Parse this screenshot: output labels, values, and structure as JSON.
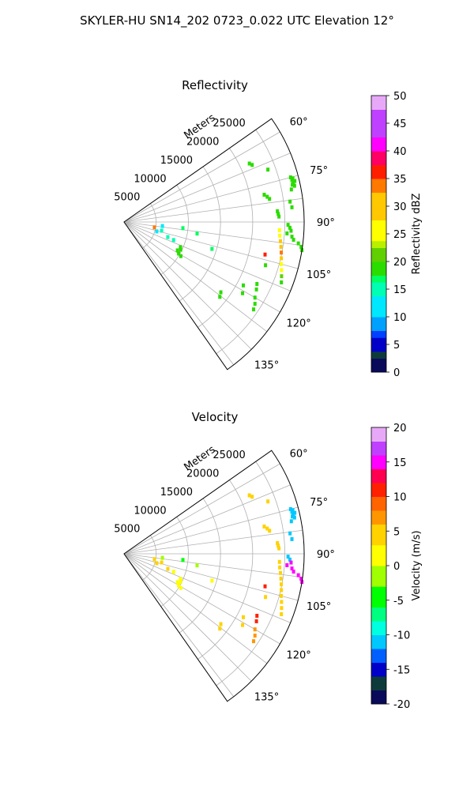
{
  "figure_title": "SKYLER-HU  SN14_202  0723_0.022 UTC Elevation 12°",
  "chart_data": [
    {
      "type": "scatter",
      "title": "Reflectivity",
      "range_axis_label": "Meters",
      "range_ticks": [
        5000,
        10000,
        15000,
        20000,
        25000
      ],
      "range_tick_labels": [
        "5000",
        "10000",
        "15000",
        "20000",
        "25000"
      ],
      "range_max": 28000,
      "azimuth_range_deg": [
        55,
        145
      ],
      "azimuth_ticks": [
        60,
        75,
        90,
        105,
        120,
        135
      ],
      "azimuth_tick_labels": [
        "60°",
        "75°",
        "90°",
        "105°",
        "120°",
        "135°"
      ],
      "grid": true,
      "colorbar": {
        "label": "Reflectivity dBZ",
        "range": [
          0,
          50
        ],
        "ticks": [
          0,
          5,
          10,
          15,
          20,
          25,
          30,
          35,
          40,
          45,
          50
        ],
        "tick_labels": [
          "0",
          "5",
          "10",
          "15",
          "20",
          "25",
          "30",
          "35",
          "40",
          "45",
          "50"
        ]
      },
      "echoes": [
        {
          "az": 65,
          "r": 21500,
          "v": 18
        },
        {
          "az": 66,
          "r": 21800,
          "v": 18
        },
        {
          "az": 70,
          "r": 23800,
          "v": 18
        },
        {
          "az": 75,
          "r": 26800,
          "v": 18
        },
        {
          "az": 75.5,
          "r": 27100,
          "v": 18
        },
        {
          "az": 76,
          "r": 26900,
          "v": 19
        },
        {
          "az": 76.5,
          "r": 27300,
          "v": 18
        },
        {
          "az": 77,
          "r": 27000,
          "v": 19
        },
        {
          "az": 77.5,
          "r": 26800,
          "v": 18
        },
        {
          "az": 78,
          "r": 27100,
          "v": 19
        },
        {
          "az": 79,
          "r": 26500,
          "v": 18
        },
        {
          "az": 79,
          "r": 22200,
          "v": 18
        },
        {
          "az": 80,
          "r": 22600,
          "v": 18
        },
        {
          "az": 81,
          "r": 22900,
          "v": 18
        },
        {
          "az": 83,
          "r": 26000,
          "v": 18
        },
        {
          "az": 85,
          "r": 26200,
          "v": 18
        },
        {
          "az": 86,
          "r": 23900,
          "v": 18
        },
        {
          "az": 87,
          "r": 24000,
          "v": 18
        },
        {
          "az": 88,
          "r": 24100,
          "v": 18
        },
        {
          "az": 91,
          "r": 25500,
          "v": 19
        },
        {
          "az": 92,
          "r": 25800,
          "v": 18
        },
        {
          "az": 93,
          "r": 26000,
          "v": 19
        },
        {
          "az": 94,
          "r": 25400,
          "v": 18
        },
        {
          "az": 95,
          "r": 26200,
          "v": 19
        },
        {
          "az": 96,
          "r": 26500,
          "v": 18
        },
        {
          "az": 97,
          "r": 27300,
          "v": 18
        },
        {
          "az": 98,
          "r": 27800,
          "v": 18
        },
        {
          "az": 99,
          "r": 28000,
          "v": 19
        },
        {
          "az": 93,
          "r": 24200,
          "v": 24
        },
        {
          "az": 95,
          "r": 24300,
          "v": 26
        },
        {
          "az": 97,
          "r": 24500,
          "v": 28
        },
        {
          "az": 99,
          "r": 24700,
          "v": 30
        },
        {
          "az": 101,
          "r": 24900,
          "v": 33
        },
        {
          "az": 103,
          "r": 25100,
          "v": 28
        },
        {
          "az": 105,
          "r": 25300,
          "v": 26
        },
        {
          "az": 107,
          "r": 25600,
          "v": 24
        },
        {
          "az": 109,
          "r": 25900,
          "v": 20
        },
        {
          "az": 111,
          "r": 26200,
          "v": 18
        },
        {
          "az": 103,
          "r": 22500,
          "v": 36
        },
        {
          "az": 107,
          "r": 23000,
          "v": 18
        },
        {
          "az": 115,
          "r": 22800,
          "v": 18
        },
        {
          "az": 117,
          "r": 23100,
          "v": 18
        },
        {
          "az": 120,
          "r": 23500,
          "v": 18
        },
        {
          "az": 122,
          "r": 24000,
          "v": 18
        },
        {
          "az": 124,
          "r": 24300,
          "v": 18
        },
        {
          "az": 118,
          "r": 21000,
          "v": 18
        },
        {
          "az": 121,
          "r": 21500,
          "v": 18
        },
        {
          "az": 126,
          "r": 18600,
          "v": 18
        },
        {
          "az": 128,
          "r": 18900,
          "v": 18
        },
        {
          "az": 114,
          "r": 9600,
          "v": 18
        },
        {
          "az": 116,
          "r": 9800,
          "v": 18
        },
        {
          "az": 118,
          "r": 9400,
          "v": 18
        },
        {
          "az": 120,
          "r": 9800,
          "v": 18
        },
        {
          "az": 121,
          "r": 10300,
          "v": 18
        },
        {
          "az": 103,
          "r": 6000,
          "v": 14
        },
        {
          "az": 106,
          "r": 5300,
          "v": 12
        },
        {
          "az": 109,
          "r": 7200,
          "v": 14
        },
        {
          "az": 110,
          "r": 8200,
          "v": 14
        },
        {
          "az": 96,
          "r": 6000,
          "v": 12
        },
        {
          "az": 100,
          "r": 4800,
          "v": 32
        },
        {
          "az": 96,
          "r": 9200,
          "v": 16
        },
        {
          "az": 99,
          "r": 11500,
          "v": 16
        },
        {
          "az": 107,
          "r": 14300,
          "v": 16
        }
      ]
    },
    {
      "type": "scatter",
      "title": "Velocity",
      "range_axis_label": "Meters",
      "range_ticks": [
        5000,
        10000,
        15000,
        20000,
        25000
      ],
      "range_tick_labels": [
        "5000",
        "10000",
        "15000",
        "20000",
        "25000"
      ],
      "range_max": 28000,
      "azimuth_range_deg": [
        55,
        145
      ],
      "azimuth_ticks": [
        60,
        75,
        90,
        105,
        120,
        135
      ],
      "azimuth_tick_labels": [
        "60°",
        "75°",
        "90°",
        "105°",
        "120°",
        "135°"
      ],
      "grid": true,
      "colorbar": {
        "label": "Velocity (m/s)",
        "range": [
          -20,
          20
        ],
        "ticks": [
          -20,
          -15,
          -10,
          -5,
          0,
          5,
          10,
          15,
          20
        ],
        "tick_labels": [
          "-20",
          "-15",
          "-10",
          "-5",
          "0",
          "5",
          "10",
          "15",
          "20"
        ]
      },
      "echoes": [
        {
          "az": 65,
          "r": 21500,
          "v": 5
        },
        {
          "az": 66,
          "r": 21800,
          "v": 5
        },
        {
          "az": 70,
          "r": 23800,
          "v": 5
        },
        {
          "az": 75,
          "r": 26800,
          "v": -11
        },
        {
          "az": 75.5,
          "r": 27100,
          "v": -11
        },
        {
          "az": 76,
          "r": 26900,
          "v": -12
        },
        {
          "az": 76.5,
          "r": 27300,
          "v": -11
        },
        {
          "az": 77,
          "r": 27000,
          "v": -12
        },
        {
          "az": 77.5,
          "r": 26800,
          "v": -11
        },
        {
          "az": 78,
          "r": 27100,
          "v": -12
        },
        {
          "az": 79,
          "r": 26500,
          "v": -11
        },
        {
          "az": 79,
          "r": 22200,
          "v": 5
        },
        {
          "az": 80,
          "r": 22600,
          "v": 5
        },
        {
          "az": 81,
          "r": 22900,
          "v": 5
        },
        {
          "az": 83,
          "r": 26000,
          "v": -11
        },
        {
          "az": 85,
          "r": 26200,
          "v": -11
        },
        {
          "az": 86,
          "r": 23900,
          "v": 5
        },
        {
          "az": 87,
          "r": 24000,
          "v": 5
        },
        {
          "az": 88,
          "r": 24100,
          "v": 5
        },
        {
          "az": 91,
          "r": 25500,
          "v": -11
        },
        {
          "az": 92,
          "r": 25800,
          "v": -11
        },
        {
          "az": 93,
          "r": 26000,
          "v": 14
        },
        {
          "az": 94,
          "r": 25400,
          "v": 14
        },
        {
          "az": 95,
          "r": 26200,
          "v": 15
        },
        {
          "az": 96,
          "r": 26500,
          "v": 14
        },
        {
          "az": 97,
          "r": 27300,
          "v": 15
        },
        {
          "az": 98,
          "r": 27800,
          "v": 14
        },
        {
          "az": 99,
          "r": 28000,
          "v": 15
        },
        {
          "az": 93,
          "r": 24200,
          "v": 5
        },
        {
          "az": 95,
          "r": 24300,
          "v": 5
        },
        {
          "az": 97,
          "r": 24500,
          "v": 5
        },
        {
          "az": 99,
          "r": 24700,
          "v": 5
        },
        {
          "az": 101,
          "r": 24900,
          "v": 5
        },
        {
          "az": 103,
          "r": 25100,
          "v": 5
        },
        {
          "az": 105,
          "r": 25300,
          "v": 5
        },
        {
          "az": 107,
          "r": 25600,
          "v": 5
        },
        {
          "az": 109,
          "r": 25900,
          "v": 5
        },
        {
          "az": 111,
          "r": 26200,
          "v": 5
        },
        {
          "az": 103,
          "r": 22500,
          "v": 10
        },
        {
          "az": 107,
          "r": 23000,
          "v": 5
        },
        {
          "az": 115,
          "r": 22800,
          "v": 10
        },
        {
          "az": 117,
          "r": 23100,
          "v": 10
        },
        {
          "az": 120,
          "r": 23500,
          "v": 7
        },
        {
          "az": 122,
          "r": 24000,
          "v": 7
        },
        {
          "az": 124,
          "r": 24300,
          "v": 7
        },
        {
          "az": 118,
          "r": 21000,
          "v": 5
        },
        {
          "az": 121,
          "r": 21500,
          "v": 5
        },
        {
          "az": 126,
          "r": 18600,
          "v": 5
        },
        {
          "az": 128,
          "r": 18900,
          "v": 5
        },
        {
          "az": 114,
          "r": 9600,
          "v": 2
        },
        {
          "az": 116,
          "r": 9800,
          "v": 2
        },
        {
          "az": 118,
          "r": 9400,
          "v": 2
        },
        {
          "az": 120,
          "r": 9800,
          "v": 2
        },
        {
          "az": 121,
          "r": 10300,
          "v": 2
        },
        {
          "az": 103,
          "r": 6000,
          "v": 5
        },
        {
          "az": 106,
          "r": 5300,
          "v": 5
        },
        {
          "az": 109,
          "r": 7200,
          "v": 5
        },
        {
          "az": 110,
          "r": 8200,
          "v": 2
        },
        {
          "az": 96,
          "r": 6000,
          "v": -3
        },
        {
          "az": 100,
          "r": 4800,
          "v": 5
        },
        {
          "az": 96,
          "r": 9200,
          "v": -5
        },
        {
          "az": 99,
          "r": 11500,
          "v": -3
        },
        {
          "az": 107,
          "r": 14300,
          "v": 2
        }
      ]
    }
  ]
}
